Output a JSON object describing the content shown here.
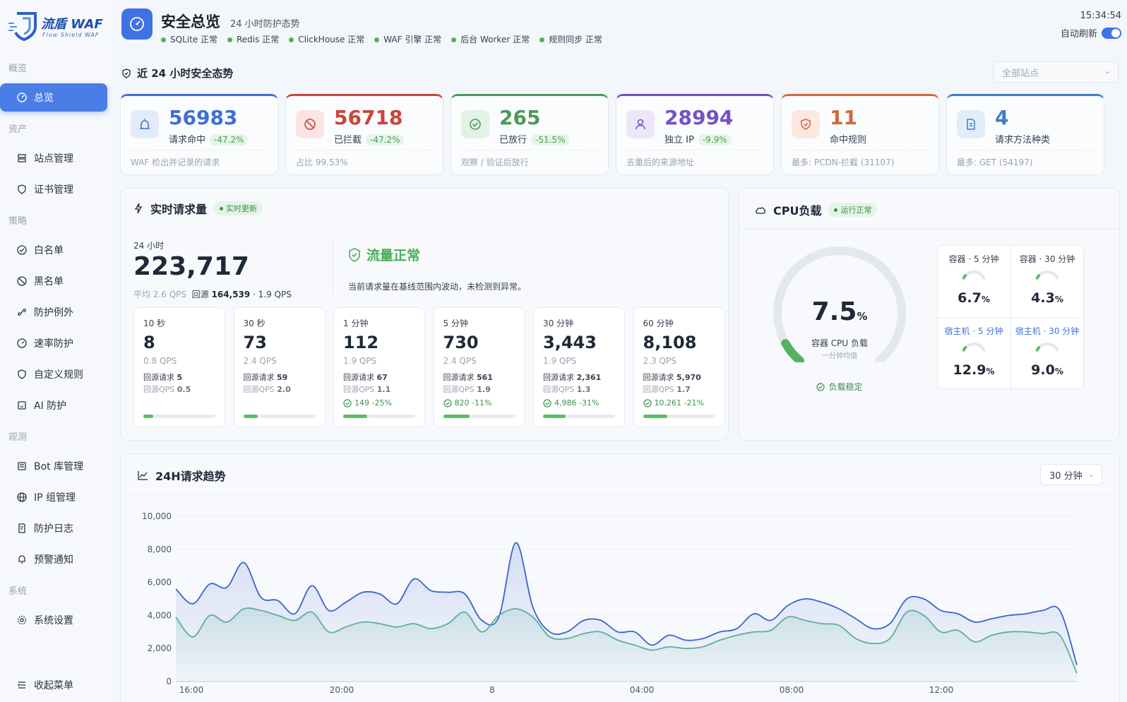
{
  "sidebar": {
    "logo_title": "流盾 WAF",
    "logo_sub": "Flow Shield WAF",
    "sections": {
      "overview": "概览",
      "assets": "资产",
      "policy": "策略",
      "observe": "观测",
      "system": "系统"
    },
    "items": {
      "dashboard": "总览",
      "sites": "站点管理",
      "certs": "证书管理",
      "whitelist": "白名单",
      "blacklist": "黑名单",
      "exceptions": "防护例外",
      "rate": "速率防护",
      "custom": "自定义规则",
      "ai": "AI 防护",
      "bot": "Bot 库管理",
      "ipgroup": "IP 组管理",
      "logs": "防护日志",
      "alerts": "预警通知",
      "settings": "系统设置",
      "collapse": "收起菜单"
    }
  },
  "header": {
    "title": "安全总览",
    "subtitle": "24 小时防护态势",
    "statuses": [
      "SQLite 正常",
      "Redis 正常",
      "ClickHouse 正常",
      "WAF 引擎 正常",
      "后台 Worker 正常",
      "规则同步 正常"
    ],
    "clock": "15:34:54",
    "auto_refresh": "自动刷新"
  },
  "section_title": "近 24 小时安全态势",
  "site_select": "全部站点",
  "kpis": [
    {
      "value": "56983",
      "label": "请求命中",
      "badge": "-47.2%",
      "foot": "WAF 检出并记录的请求",
      "color": "#3f6ed8"
    },
    {
      "value": "56718",
      "label": "已拦截",
      "badge": "-47.2%",
      "foot": "占比 99.53%",
      "color": "#c9453a"
    },
    {
      "value": "265",
      "label": "已放行",
      "badge": "-51.5%",
      "foot": "观察 / 验证后放行",
      "color": "#4a9b57"
    },
    {
      "value": "28994",
      "label": "独立 IP",
      "badge": "-9.9%",
      "foot": "去重后的来源地址",
      "color": "#7450c9"
    },
    {
      "value": "11",
      "label": "命中规则",
      "badge": "",
      "foot": "最多: PCDN-拦截 (31107)",
      "color": "#d06a3c"
    },
    {
      "value": "4",
      "label": "请求方法种类",
      "badge": "",
      "foot": "最多: GET (54197)",
      "color": "#3f7fc9"
    }
  ],
  "realtime": {
    "title": "实时请求量",
    "pill": "实时更新",
    "period": "24 小时",
    "total": "223,717",
    "avg": "平均 2.6 QPS",
    "origin_label": "回源",
    "origin_value": "164,539",
    "origin_qps": "· 1.9 QPS",
    "status_title": "流量正常",
    "status_desc": "当前请求量在基线范围内波动，未检测到异常。",
    "tiles": [
      {
        "label": "10 秒",
        "value": "8",
        "qps": "0.8 QPS",
        "origin": "5",
        "origin_qps": "0.5",
        "change": "",
        "progress": 0.14
      },
      {
        "label": "30 秒",
        "value": "73",
        "qps": "2.4 QPS",
        "origin": "59",
        "origin_qps": "2.0",
        "change": "",
        "progress": 0.2
      },
      {
        "label": "1 分钟",
        "value": "112",
        "qps": "1.9 QPS",
        "origin": "67",
        "origin_qps": "1.1",
        "change": "149 -25%",
        "progress": 0.33
      },
      {
        "label": "5 分钟",
        "value": "730",
        "qps": "2.4 QPS",
        "origin": "561",
        "origin_qps": "1.9",
        "change": "820 -11%",
        "progress": 0.37
      },
      {
        "label": "30 分钟",
        "value": "3,443",
        "qps": "1.9 QPS",
        "origin": "2,361",
        "origin_qps": "1.3",
        "change": "4,986 -31%",
        "progress": 0.31
      },
      {
        "label": "60 分钟",
        "value": "8,108",
        "qps": "2.3 QPS",
        "origin": "5,970",
        "origin_qps": "1.7",
        "change": "10,261 -21%",
        "progress": 0.34
      }
    ],
    "origin_req_label": "回源请求",
    "origin_qps_label": "回源QPS"
  },
  "cpu": {
    "title": "CPU负载",
    "pill": "运行正常",
    "value": "7.5",
    "unit": "%",
    "label": "容器 CPU 负载",
    "sub": "一分钟均值",
    "state": "负载稳定",
    "cells": [
      {
        "label": "容器 · 5 分钟",
        "value": "6.7",
        "pct": 6.7
      },
      {
        "label": "容器 · 30 分钟",
        "value": "4.3",
        "pct": 4.3
      },
      {
        "label": "宿主机 · 5 分钟",
        "value": "12.9",
        "pct": 12.9
      },
      {
        "label": "宿主机 · 30 分钟",
        "value": "9.0",
        "pct": 9.0
      }
    ],
    "pct": 7.5
  },
  "trend": {
    "title": "24H请求趋势",
    "select": "30 分钟"
  },
  "chart_data": {
    "type": "area",
    "title": "24H请求趋势",
    "x_ticks": [
      "16:00",
      "20:00",
      "8",
      "04:00",
      "08:00",
      "12:00"
    ],
    "y_ticks": [
      "0",
      "2,000",
      "4,000",
      "6,000",
      "8,000",
      "10,000"
    ],
    "ylim": [
      0,
      10000
    ],
    "series": [
      {
        "color": "#3a63cf",
        "values": [
          5600,
          4700,
          5900,
          5700,
          7200,
          5100,
          4900,
          4100,
          5800,
          4300,
          4800,
          5400,
          5300,
          4700,
          6200,
          5500,
          5400,
          5300,
          3700,
          3900,
          8400,
          4500,
          3000,
          3000,
          3700,
          3700,
          3000,
          3000,
          2200,
          2800,
          2500,
          2600,
          3000,
          3200,
          4100,
          3700,
          4600,
          5000,
          4800,
          4400,
          3800,
          3200,
          3500,
          5000,
          5000,
          4300,
          4100,
          3600,
          3800,
          4000,
          4100,
          4300,
          4300,
          1000
        ]
      },
      {
        "color": "#5fae9c",
        "values": [
          3900,
          2700,
          4000,
          3600,
          4400,
          4300,
          4000,
          3700,
          4200,
          3000,
          3300,
          3600,
          3500,
          3300,
          3500,
          3200,
          3500,
          4200,
          3000,
          4000,
          4400,
          3900,
          2700,
          2600,
          2900,
          3000,
          2500,
          2200,
          1900,
          2100,
          2000,
          2100,
          2500,
          2800,
          3000,
          3100,
          3900,
          3700,
          3500,
          3400,
          2600,
          2300,
          2600,
          4200,
          4000,
          3000,
          3100,
          2400,
          2800,
          3000,
          3000,
          2900,
          2800,
          500
        ]
      }
    ]
  }
}
